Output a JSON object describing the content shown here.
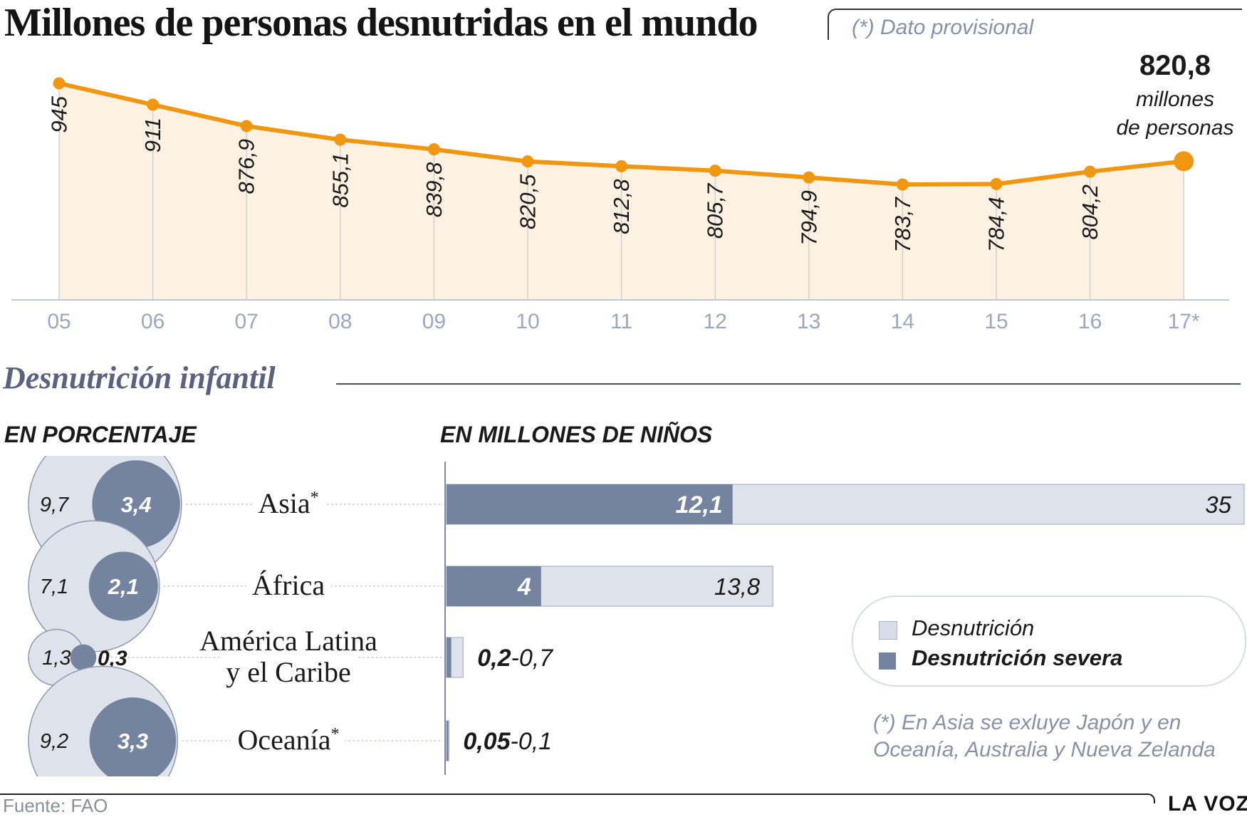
{
  "header": {
    "title": "Millones de personas desnutridas en el mundo",
    "note": "(*) Dato provisional"
  },
  "line_chart_labels": {
    "final_value": "820,8",
    "final_unit_line1": "millones",
    "final_unit_line2": "de personas"
  },
  "section": {
    "title": "Desnutrición infantil",
    "subtitle_percent": "EN PORCENTAJE",
    "subtitle_millions": "EN MILLONES DE NIÑOS"
  },
  "legend": {
    "undernutrition": "Desnutrición",
    "severe": "Desnutrición severa"
  },
  "footnote": "(*) En Asia se exluye Japón y en Oceanía, Australia y Nueva Zelanda",
  "footer": {
    "source": "Fuente: FAO",
    "brand": "LA VOZ"
  },
  "colors": {
    "line": "#f0960f",
    "area": "#fdf1e2",
    "light_bar": "#d8dde8",
    "dark_bar": "#74839e",
    "axis_text": "#9aa8c4"
  },
  "chart_data": [
    {
      "type": "line",
      "x": [
        "05",
        "06",
        "07",
        "08",
        "09",
        "10",
        "11",
        "12",
        "13",
        "14",
        "15",
        "16",
        "17*"
      ],
      "series": [
        {
          "values": [
            945,
            911,
            876.9,
            855.1,
            839.8,
            820.5,
            812.8,
            805.7,
            794.9,
            783.7,
            784.4,
            804.2,
            820.8
          ],
          "labels": [
            "945",
            "911",
            "876,9",
            "855,1",
            "839,8",
            "820,5",
            "812,8",
            "805,7",
            "794,9",
            "783,7",
            "784,4",
            "804,2",
            ""
          ]
        }
      ],
      "title": "Millones de personas desnutridas en el mundo"
    },
    {
      "type": "bar",
      "orientation": "horizontal",
      "categories": [
        "Asia*",
        "África",
        "América Latina y el Caribe",
        "Oceanía*"
      ],
      "category_lines": [
        [
          "Asia*"
        ],
        [
          "África"
        ],
        [
          "América Latina",
          "y el Caribe"
        ],
        [
          "Oceanía*"
        ]
      ],
      "series": [
        {
          "name": "Desnutrición",
          "values": [
            35,
            13.8,
            0.7,
            0.1
          ],
          "labels": [
            "35",
            "13,8",
            "0,7",
            "0,1"
          ]
        },
        {
          "name": "Desnutrición severa",
          "values": [
            12.1,
            4,
            0.2,
            0.05
          ],
          "labels": [
            "12,1",
            "4",
            "0,2",
            "0,05"
          ]
        }
      ],
      "title": "EN MILLONES DE NIÑOS"
    },
    {
      "type": "bubble",
      "categories": [
        "Asia*",
        "África",
        "América Latina y el Caribe",
        "Oceanía*"
      ],
      "series": [
        {
          "name": "Desnutrición",
          "values": [
            9.7,
            7.1,
            1.3,
            9.2
          ],
          "labels": [
            "9,7",
            "7,1",
            "1,3",
            "9,2"
          ]
        },
        {
          "name": "Desnutrición severa",
          "values": [
            3.4,
            2.1,
            0.3,
            3.3
          ],
          "labels": [
            "3,4",
            "2,1",
            "0,3",
            "3,3"
          ]
        }
      ],
      "title": "EN PORCENTAJE"
    }
  ]
}
